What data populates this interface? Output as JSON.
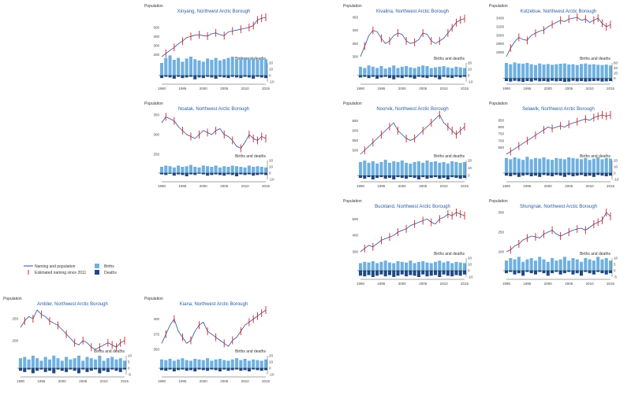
{
  "colors": {
    "line": "#2b4da0",
    "error": "#d62020",
    "births": "#6fb0e0",
    "deaths": "#1f4a85",
    "axis": "#222222",
    "title": "#2a5d9f"
  },
  "legend": {
    "items": [
      {
        "label": "Naming and population",
        "kind": "line"
      },
      {
        "label": "Estimated naming since 2011",
        "kind": "error"
      },
      {
        "label": "Births",
        "kind": "births"
      },
      {
        "label": "Deaths",
        "kind": "deaths"
      }
    ]
  },
  "chart_data": [
    {
      "type": "line",
      "title": "Xinyang, Northwest Arctic Borough",
      "ylabel": "Population",
      "sublabel": "Births and deaths",
      "x": [
        1990,
        1991,
        1992,
        1993,
        1994,
        1995,
        1996,
        1997,
        1998,
        1999,
        2000,
        2001,
        2002,
        2003,
        2004,
        2005,
        2006,
        2007,
        2008,
        2009,
        2010,
        2011,
        2012,
        2013,
        2014,
        2015
      ],
      "y": [
        180,
        215,
        250,
        280,
        320,
        350,
        390,
        400,
        415,
        420,
        410,
        405,
        430,
        440,
        420,
        410,
        450,
        460,
        470,
        480,
        490,
        500,
        520,
        580,
        600,
        610
      ],
      "yticks": [
        200,
        300,
        400,
        500
      ],
      "xticks": [
        1990,
        1995,
        2000,
        2005,
        2010,
        2015
      ],
      "births": [
        20,
        28,
        32,
        25,
        28,
        22,
        27,
        30,
        26,
        24,
        22,
        27,
        25,
        28,
        24,
        26,
        28,
        30,
        25,
        27,
        29,
        26,
        28,
        25,
        27,
        26
      ],
      "deaths": [
        -4,
        -2,
        -3,
        -5,
        -2,
        -4,
        -3,
        -2,
        -6,
        -3,
        -4,
        -2,
        -3,
        -5,
        -2,
        -3,
        -4,
        -2,
        -3,
        -4,
        -2,
        -3,
        -5,
        -2,
        -3,
        -4
      ],
      "bticks": [
        20,
        10,
        0,
        -10
      ]
    },
    {
      "type": "line",
      "title": "Kivalina, Northwest Arctic Borough",
      "ylabel": "Population",
      "sublabel": "Births and deaths",
      "x": [
        1990,
        1991,
        1992,
        1993,
        1994,
        1995,
        1996,
        1997,
        1998,
        1999,
        2000,
        2001,
        2002,
        2003,
        2004,
        2005,
        2006,
        2007,
        2008,
        2009,
        2010,
        2011,
        2012,
        2013,
        2014,
        2015
      ],
      "y": [
        300,
        340,
        380,
        400,
        395,
        370,
        350,
        360,
        380,
        390,
        385,
        360,
        350,
        355,
        365,
        390,
        385,
        360,
        350,
        360,
        370,
        390,
        410,
        430,
        440,
        445
      ],
      "yticks": [
        300,
        350,
        400,
        450
      ],
      "xticks": [
        1990,
        1995,
        2000,
        2005,
        2010,
        2015
      ],
      "births": [
        14,
        12,
        16,
        14,
        12,
        15,
        11,
        13,
        16,
        12,
        14,
        15,
        13,
        12,
        14,
        16,
        15,
        12,
        13,
        14,
        15,
        13,
        12,
        14,
        13,
        12
      ],
      "deaths": [
        -3,
        -2,
        -4,
        -2,
        -5,
        -3,
        -2,
        -4,
        -6,
        -3,
        -4,
        -2,
        -3,
        -5,
        -2,
        -3,
        -4,
        -2,
        -3,
        -6,
        -2,
        -3,
        -4,
        -2,
        -3,
        -2
      ],
      "bticks": [
        20,
        10,
        0,
        -10
      ]
    },
    {
      "type": "line",
      "title": "Kotzebue, Northwest Arctic Borough",
      "ylabel": "Population",
      "sublabel": "Births and deaths",
      "x": [
        1990,
        1991,
        1992,
        1993,
        1994,
        1995,
        1996,
        1997,
        1998,
        1999,
        2000,
        2001,
        2002,
        2003,
        2004,
        2005,
        2006,
        2007,
        2008,
        2009,
        2010,
        2011,
        2012,
        2013,
        2014,
        2015
      ],
      "y": [
        2500,
        2700,
        2850,
        2950,
        2900,
        2880,
        3000,
        3050,
        3100,
        3120,
        3200,
        3250,
        3300,
        3350,
        3320,
        3380,
        3400,
        3420,
        3350,
        3380,
        3300,
        3350,
        3400,
        3280,
        3200,
        3250
      ],
      "yticks": [
        2600,
        2800,
        3000,
        3200,
        3400
      ],
      "xticks": [
        1990,
        1995,
        2000,
        2005,
        2010,
        2015
      ],
      "births": [
        60,
        55,
        62,
        58,
        57,
        60,
        55,
        52,
        58,
        54,
        56,
        53,
        55,
        57,
        58,
        54,
        55,
        52,
        56,
        58,
        54,
        55,
        53,
        52,
        54,
        50
      ],
      "deaths": [
        -10,
        -12,
        -9,
        -11,
        -13,
        -10,
        -12,
        -8,
        -11,
        -10,
        -12,
        -9,
        -11,
        -10,
        -13,
        -12,
        -9,
        -11,
        -10,
        -12,
        -11,
        -10,
        -9,
        -12,
        -11,
        -10
      ],
      "bticks": [
        60,
        40,
        20,
        0
      ]
    },
    {
      "type": "line",
      "title": "Noatak, Northwest Arctic Borough",
      "ylabel": "Population",
      "sublabel": "Births and deaths",
      "x": [
        1990,
        1991,
        1992,
        1993,
        1994,
        1995,
        1996,
        1997,
        1998,
        1999,
        2000,
        2001,
        2002,
        2003,
        2004,
        2005,
        2006,
        2007,
        2008,
        2009,
        2010,
        2011,
        2012,
        2013,
        2014,
        2015
      ],
      "y": [
        330,
        345,
        340,
        335,
        320,
        310,
        300,
        295,
        290,
        300,
        310,
        305,
        300,
        310,
        315,
        300,
        295,
        285,
        270,
        265,
        280,
        300,
        290,
        285,
        295,
        290
      ],
      "yticks": [
        250,
        300,
        350
      ],
      "xticks": [
        1990,
        1995,
        2000,
        2005,
        2010,
        2015
      ],
      "births": [
        10,
        12,
        11,
        9,
        12,
        10,
        11,
        13,
        10,
        9,
        12,
        11,
        10,
        12,
        9,
        11,
        10,
        12,
        11,
        10,
        9,
        12,
        10,
        11,
        10,
        9
      ],
      "deaths": [
        -2,
        -3,
        -1,
        -4,
        -2,
        -3,
        -5,
        -2,
        -3,
        -1,
        -2,
        -4,
        -3,
        -2,
        -3,
        -4,
        -2,
        -3,
        -5,
        -2,
        -3,
        -2,
        -4,
        -3,
        -2,
        -3
      ],
      "bticks": [
        20,
        10,
        0,
        -10
      ]
    },
    {
      "type": "line",
      "title": "Noorvik, Northwest Arctic Borough",
      "ylabel": "Population",
      "sublabel": "Births and deaths",
      "x": [
        1990,
        1991,
        1992,
        1993,
        1994,
        1995,
        1996,
        1997,
        1998,
        1999,
        2000,
        2001,
        2002,
        2003,
        2004,
        2005,
        2006,
        2007,
        2008,
        2009,
        2010,
        2011,
        2012,
        2013,
        2014,
        2015
      ],
      "y": [
        480,
        500,
        520,
        540,
        560,
        580,
        600,
        620,
        640,
        600,
        580,
        560,
        550,
        560,
        580,
        600,
        620,
        640,
        660,
        680,
        640,
        620,
        600,
        580,
        600,
        620
      ],
      "yticks": [
        500,
        550,
        600,
        650
      ],
      "xticks": [
        1990,
        1995,
        2000,
        2005,
        2010,
        2015
      ],
      "births": [
        18,
        20,
        17,
        19,
        16,
        18,
        21,
        17,
        19,
        18,
        20,
        17,
        16,
        18,
        19,
        17,
        20,
        18,
        19,
        17,
        18,
        16,
        19,
        18,
        17,
        18
      ],
      "deaths": [
        -3,
        -4,
        -2,
        -5,
        -3,
        -2,
        -4,
        -3,
        -5,
        -2,
        -3,
        -4,
        -2,
        -3,
        -5,
        -2,
        -4,
        -3,
        -2,
        -4,
        -3,
        -5,
        -2,
        -3,
        -4,
        -3
      ],
      "bticks": [
        20,
        10,
        0
      ]
    },
    {
      "type": "line",
      "title": "Selawik, Northwest Arctic Borough",
      "ylabel": "Population",
      "sublabel": "Births and deaths",
      "x": [
        1990,
        1991,
        1992,
        1993,
        1994,
        1995,
        1996,
        1997,
        1998,
        1999,
        2000,
        2001,
        2002,
        2003,
        2004,
        2005,
        2006,
        2007,
        2008,
        2009,
        2010,
        2011,
        2012,
        2013,
        2014,
        2015
      ],
      "y": [
        600,
        620,
        640,
        660,
        680,
        700,
        720,
        740,
        760,
        780,
        800,
        790,
        800,
        810,
        800,
        820,
        830,
        840,
        850,
        860,
        850,
        870,
        880,
        890,
        880,
        890
      ],
      "yticks": [
        650,
        700,
        750,
        800,
        850
      ],
      "xticks": [
        1990,
        1995,
        2000,
        2005,
        2010,
        2015
      ],
      "births": [
        24,
        22,
        25,
        23,
        21,
        26,
        22,
        24,
        23,
        25,
        22,
        21,
        24,
        23,
        22,
        25,
        24,
        23,
        22,
        24,
        21,
        23,
        25,
        22,
        24,
        23
      ],
      "deaths": [
        -4,
        -5,
        -3,
        -6,
        -4,
        -3,
        -5,
        -4,
        -6,
        -3,
        -4,
        -5,
        -3,
        -4,
        -6,
        -3,
        -5,
        -4,
        -3,
        -5,
        -4,
        -6,
        -3,
        -4,
        -5,
        -4
      ],
      "bticks": [
        20,
        10,
        0,
        -10
      ]
    },
    {
      "type": "line",
      "title": "Buckland, Northwest Arctic Borough",
      "ylabel": "Population",
      "sublabel": "Births and deaths",
      "x": [
        1990,
        1991,
        1992,
        1993,
        1994,
        1995,
        1996,
        1997,
        1998,
        1999,
        2000,
        2001,
        2002,
        2003,
        2004,
        2005,
        2006,
        2007,
        2008,
        2009,
        2010,
        2011,
        2012,
        2013,
        2014,
        2015
      ],
      "y": [
        300,
        320,
        340,
        330,
        350,
        370,
        380,
        390,
        400,
        420,
        430,
        440,
        460,
        470,
        480,
        490,
        500,
        480,
        470,
        500,
        510,
        530,
        520,
        540,
        530,
        520
      ],
      "yticks": [
        300,
        400,
        500
      ],
      "xticks": [
        1990,
        1995,
        2000,
        2005,
        2010,
        2015
      ],
      "births": [
        12,
        14,
        13,
        15,
        12,
        14,
        16,
        13,
        12,
        15,
        14,
        13,
        16,
        12,
        14,
        15,
        13,
        12,
        14,
        16,
        13,
        15,
        12,
        14,
        13,
        12
      ],
      "deaths": [
        -8,
        -9,
        -7,
        -10,
        -8,
        -6,
        -9,
        -7,
        -10,
        -8,
        -6,
        -9,
        -7,
        -8,
        -10,
        -6,
        -9,
        -8,
        -7,
        -10,
        -6,
        -8,
        -9,
        -7,
        -8,
        -6
      ],
      "bticks": [
        20,
        10,
        0,
        -10
      ]
    },
    {
      "type": "line",
      "title": "Shungnak, Northwest Arctic Borough",
      "ylabel": "Population",
      "sublabel": "Births and deaths",
      "x": [
        1990,
        1991,
        1992,
        1993,
        1994,
        1995,
        1996,
        1997,
        1998,
        1999,
        2000,
        2001,
        2002,
        2003,
        2004,
        2005,
        2006,
        2007,
        2008,
        2009,
        2010,
        2011,
        2012,
        2013,
        2014,
        2015
      ],
      "y": [
        200,
        205,
        215,
        220,
        230,
        235,
        240,
        238,
        235,
        245,
        250,
        255,
        245,
        240,
        245,
        250,
        255,
        258,
        260,
        255,
        262,
        270,
        275,
        280,
        300,
        290
      ],
      "yticks": [
        200,
        250,
        300
      ],
      "xticks": [
        1990,
        1995,
        2000,
        2005,
        2010,
        2015
      ],
      "births": [
        8,
        10,
        9,
        11,
        7,
        9,
        10,
        8,
        11,
        9,
        7,
        10,
        8,
        9,
        11,
        8,
        10,
        9,
        7,
        10,
        9,
        8,
        11,
        9,
        10,
        8
      ],
      "deaths": [
        -2,
        -1,
        -3,
        -2,
        -4,
        -1,
        -2,
        -3,
        -1,
        -2,
        -4,
        -2,
        -1,
        -3,
        -2,
        -1,
        -3,
        -2,
        -4,
        -1,
        -2,
        -3,
        -1,
        -2,
        -3,
        -2
      ],
      "bticks": [
        10,
        5,
        0,
        -5
      ]
    },
    {
      "type": "line",
      "title": "Ambler, Northwest Arctic Borough",
      "ylabel": "Population",
      "sublabel": "Births and deaths",
      "x": [
        1990,
        1991,
        1992,
        1993,
        1994,
        1995,
        1996,
        1997,
        1998,
        1999,
        2000,
        2001,
        2002,
        2003,
        2004,
        2005,
        2006,
        2007,
        2008,
        2009,
        2010,
        2011,
        2012,
        2013,
        2014,
        2015
      ],
      "y": [
        230,
        245,
        255,
        250,
        270,
        260,
        255,
        245,
        240,
        235,
        225,
        215,
        205,
        195,
        190,
        200,
        195,
        185,
        180,
        185,
        190,
        195,
        190,
        185,
        195,
        200
      ],
      "yticks": [
        200,
        250
      ],
      "xticks": [
        1990,
        1995,
        2000,
        2005,
        2010,
        2015
      ],
      "births": [
        8,
        9,
        7,
        10,
        8,
        6,
        9,
        7,
        10,
        8,
        6,
        9,
        7,
        8,
        10,
        6,
        9,
        8,
        7,
        10,
        6,
        8,
        9,
        7,
        8,
        6
      ],
      "deaths": [
        -2,
        -3,
        -1,
        -4,
        -2,
        -1,
        -3,
        -2,
        -4,
        -1,
        -2,
        -3,
        -1,
        -2,
        -4,
        -1,
        -3,
        -2,
        -1,
        -4,
        -2,
        -3,
        -1,
        -2,
        -3,
        -1
      ],
      "bticks": [
        10,
        5,
        0,
        -5
      ]
    },
    {
      "type": "line",
      "title": "Kiana, Northwest Arctic Borough",
      "ylabel": "Population",
      "sublabel": "Births and deaths",
      "x": [
        1990,
        1991,
        1992,
        1993,
        1994,
        1995,
        1996,
        1997,
        1998,
        1999,
        2000,
        2001,
        2002,
        2003,
        2004,
        2005,
        2006,
        2007,
        2008,
        2009,
        2010,
        2011,
        2012,
        2013,
        2014,
        2015
      ],
      "y": [
        360,
        375,
        390,
        400,
        380,
        370,
        360,
        365,
        380,
        390,
        395,
        380,
        375,
        370,
        365,
        360,
        355,
        365,
        370,
        380,
        390,
        395,
        400,
        405,
        410,
        415
      ],
      "yticks": [
        350,
        375,
        400
      ],
      "xticks": [
        1990,
        1995,
        2000,
        2005,
        2010,
        2015
      ],
      "births": [
        14,
        13,
        15,
        12,
        14,
        16,
        13,
        12,
        15,
        14,
        13,
        16,
        12,
        14,
        15,
        13,
        12,
        14,
        16,
        13,
        15,
        12,
        14,
        13,
        12,
        14
      ],
      "deaths": [
        -3,
        -4,
        -2,
        -5,
        -3,
        -2,
        -4,
        -3,
        -5,
        -2,
        -3,
        -4,
        -2,
        -3,
        -5,
        -2,
        -4,
        -3,
        -2,
        -4,
        -3,
        -5,
        -2,
        -3,
        -4,
        -3
      ],
      "bticks": [
        20,
        10,
        0,
        -10
      ]
    }
  ]
}
